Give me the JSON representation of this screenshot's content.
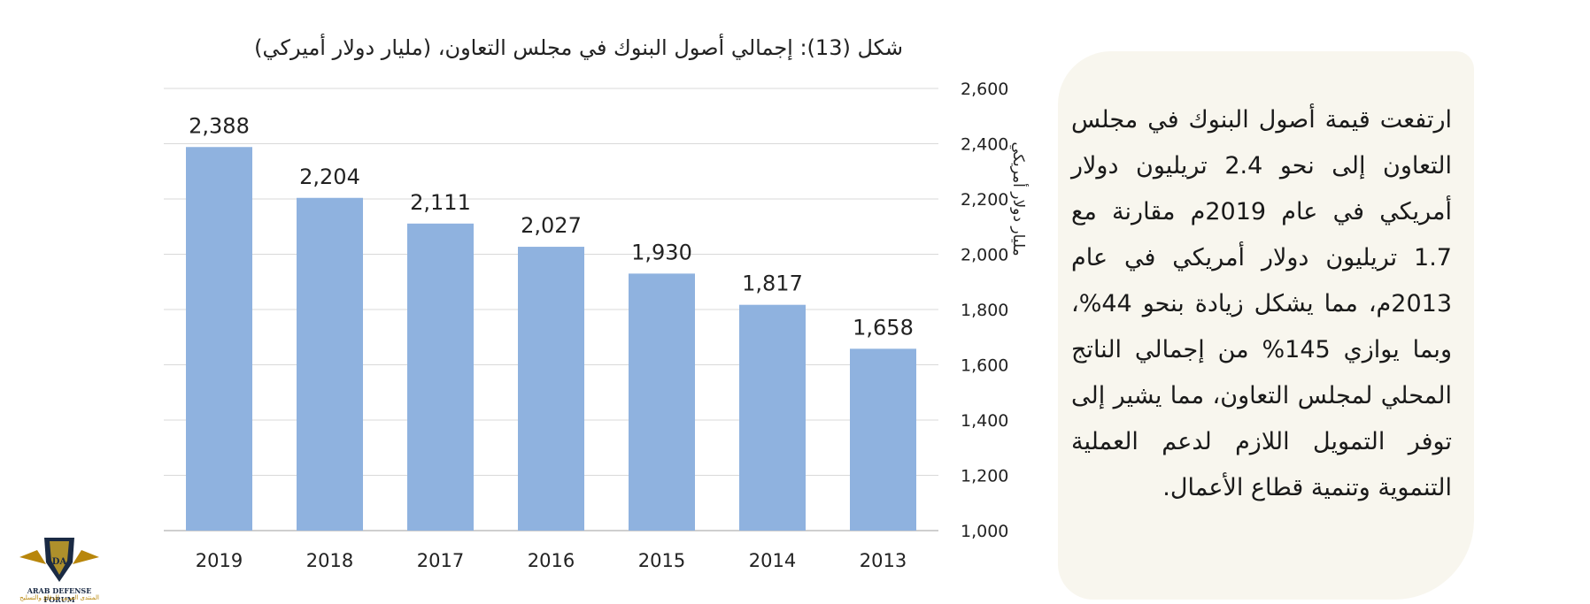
{
  "chart_data": {
    "type": "bar",
    "title": "شكل (13): إجمالي أصول البنوك في مجلس التعاون، (مليار دولار أميركي)",
    "ylabel": "مليار دولار أمريكي",
    "xlabel": "",
    "categories": [
      "2019",
      "2018",
      "2017",
      "2016",
      "2015",
      "2014",
      "2013"
    ],
    "values": [
      2388,
      2204,
      2111,
      2027,
      1930,
      1817,
      1658
    ],
    "value_labels": [
      "2,388",
      "2,204",
      "2,111",
      "2,027",
      "1,930",
      "1,817",
      "1,658"
    ],
    "ylim": [
      1000,
      2600
    ],
    "yticks": [
      "1,000",
      "1,200",
      "1,400",
      "1,600",
      "1,800",
      "2,000",
      "2,200",
      "2,400",
      "2,600"
    ],
    "ytick_values": [
      1000,
      1200,
      1400,
      1600,
      1800,
      2000,
      2200,
      2400,
      2600
    ],
    "y_axis_side": "right",
    "grid": true,
    "bar_color": "#8fb2df"
  },
  "panel": {
    "text": "ارتفعت قيمة أصول البنوك في مجلس التعاون إلى نحو 2.4 تريليون دولار أمريكي في عام 2019م مقارنة مع 1.7 تريليون دولار أمريكي في عام 2013م، مما يشكل زيادة بنحو 44%، وبما يوازي 145% من إجمالي الناتج المحلي لمجلس التعاون، مما يشير إلى توفر التمويل اللازم لدعم العملية التنموية وتنمية قطاع الأعمال."
  },
  "logo": {
    "title": "ARAB DEFENSE FORUM",
    "subtitle": "المنتدى العربي للدفاع والتسليح",
    "mark": "DA"
  }
}
